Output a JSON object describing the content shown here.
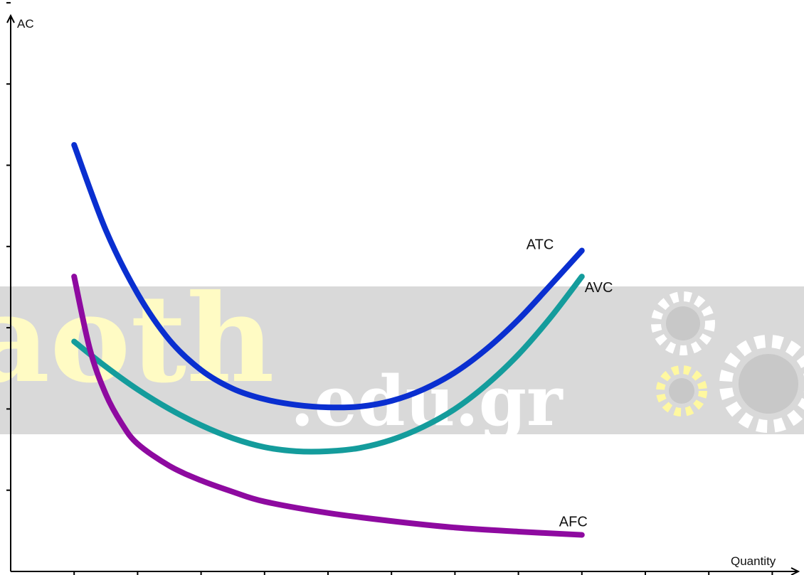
{
  "chart_data": {
    "type": "line",
    "xlabel": "Quantity",
    "ylabel": "AC",
    "x_ticks": 12,
    "y_ticks": 7,
    "grid": false,
    "series": [
      {
        "name": "ATC",
        "color": "#0a2fd0",
        "points": [
          [
            1,
            5.25
          ],
          [
            1.5,
            4.2
          ],
          [
            2,
            3.42
          ],
          [
            2.5,
            2.85
          ],
          [
            3,
            2.48
          ],
          [
            3.5,
            2.25
          ],
          [
            4,
            2.12
          ],
          [
            4.5,
            2.05
          ],
          [
            5,
            2.02
          ],
          [
            5.5,
            2.03
          ],
          [
            6,
            2.1
          ],
          [
            6.5,
            2.24
          ],
          [
            7,
            2.45
          ],
          [
            7.5,
            2.74
          ],
          [
            8,
            3.1
          ],
          [
            8.5,
            3.52
          ],
          [
            9,
            3.95
          ]
        ]
      },
      {
        "name": "AVC",
        "color": "#149c9c",
        "points": [
          [
            1,
            2.83
          ],
          [
            1.5,
            2.52
          ],
          [
            2,
            2.24
          ],
          [
            2.5,
            2.0
          ],
          [
            3,
            1.8
          ],
          [
            3.5,
            1.64
          ],
          [
            4,
            1.53
          ],
          [
            4.5,
            1.48
          ],
          [
            5,
            1.48
          ],
          [
            5.5,
            1.52
          ],
          [
            6,
            1.62
          ],
          [
            6.5,
            1.78
          ],
          [
            7,
            2.0
          ],
          [
            7.5,
            2.3
          ],
          [
            8,
            2.67
          ],
          [
            8.5,
            3.12
          ],
          [
            9,
            3.63
          ]
        ]
      },
      {
        "name": "AFC",
        "color": "#8e0aa0",
        "points": [
          [
            1,
            3.63
          ],
          [
            1.25,
            2.73
          ],
          [
            1.5,
            2.18
          ],
          [
            1.75,
            1.82
          ],
          [
            2,
            1.57
          ],
          [
            2.5,
            1.3
          ],
          [
            3,
            1.12
          ],
          [
            3.5,
            0.98
          ],
          [
            4,
            0.86
          ],
          [
            5,
            0.72
          ],
          [
            6,
            0.62
          ],
          [
            7,
            0.54
          ],
          [
            8,
            0.49
          ],
          [
            9,
            0.45
          ]
        ]
      }
    ]
  },
  "watermark": {
    "main": "aoth",
    "domain": ".edu.gr"
  }
}
